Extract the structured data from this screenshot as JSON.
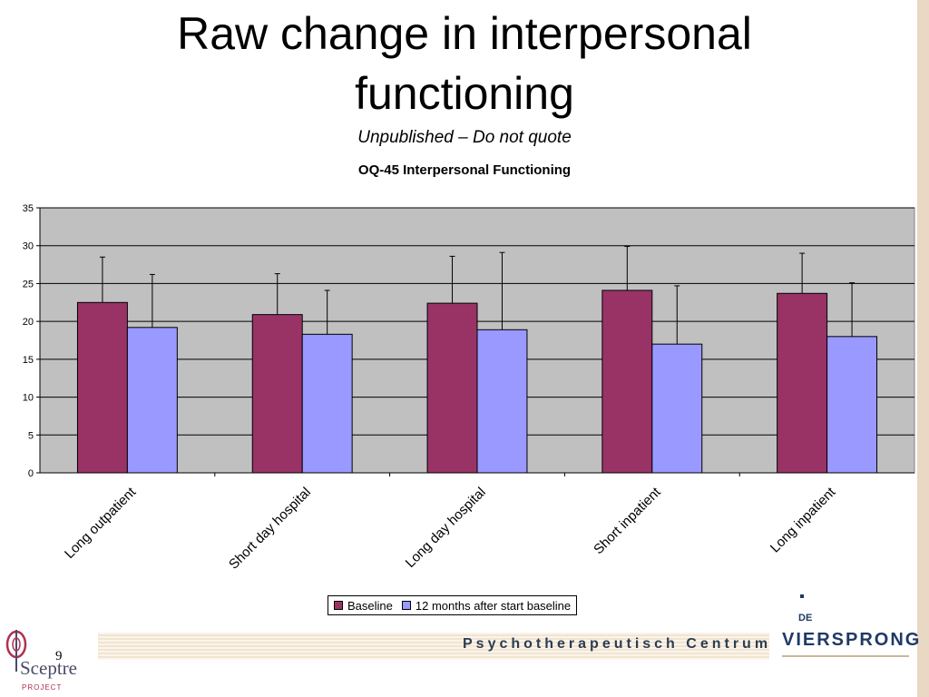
{
  "slide": {
    "title_line1": "Raw change in interpersonal",
    "title_line2": "functioning",
    "subtitle": "Unpublished – Do not quote",
    "page_number": "9"
  },
  "footer": {
    "banner_text": "Psychotherapeutisch Centrum",
    "logo_left_text": "Sceptre",
    "logo_left_sub": "PROJECT",
    "logo_right_prefix": "DE",
    "logo_right_name": "VIERSPRONG"
  },
  "chart_data": {
    "type": "bar",
    "title": "OQ-45 Interpersonal Functioning",
    "xlabel": "",
    "ylabel": "",
    "categories": [
      "Long outpatient",
      "Short day hospital",
      "Long day hospital",
      "Short inpatient",
      "Long inpatient"
    ],
    "series": [
      {
        "name": "Baseline",
        "color": "#993366",
        "values": [
          22.5,
          20.9,
          22.4,
          24.1,
          23.7
        ],
        "error_upper": [
          28.5,
          26.3,
          28.6,
          29.9,
          29.0
        ]
      },
      {
        "name": "12 months after start baseline",
        "color": "#9999ff",
        "values": [
          19.2,
          18.3,
          18.9,
          17.0,
          18.0
        ],
        "error_upper": [
          26.2,
          24.1,
          29.1,
          24.7,
          25.1
        ]
      }
    ],
    "ylim": [
      0,
      35
    ],
    "yticks": [
      0,
      5,
      10,
      15,
      20,
      25,
      30,
      35
    ],
    "grid": true,
    "legend": "bottom",
    "plot_background": "#c0c0c0"
  }
}
